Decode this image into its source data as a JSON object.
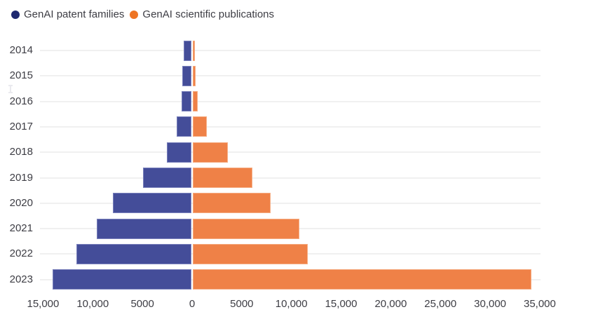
{
  "legend": {
    "items": [
      {
        "label": "GenAI patent families",
        "dot_color": "#1f2970"
      },
      {
        "label": "GenAI scientific publications",
        "dot_color": "#ee7424"
      }
    ]
  },
  "chart_data": {
    "type": "bar",
    "variant": "diverging-horizontal-pyramid",
    "title": "",
    "xlabel": "",
    "ylabel": "",
    "categories": [
      "2014",
      "2015",
      "2016",
      "2017",
      "2018",
      "2019",
      "2020",
      "2021",
      "2022",
      "2023"
    ],
    "series": [
      {
        "name": "GenAI patent families",
        "direction": "left",
        "color": "#444d99",
        "values": [
          750,
          900,
          1000,
          1450,
          2500,
          4900,
          7900,
          9500,
          11600,
          14000
        ]
      },
      {
        "name": "GenAI scientific publications",
        "direction": "right",
        "color": "#ef8147",
        "values": [
          180,
          250,
          470,
          1400,
          3550,
          6000,
          7850,
          10700,
          11550,
          34100
        ]
      }
    ],
    "x_axis": {
      "left_limit": -15000,
      "right_limit": 35000,
      "ticks": [
        {
          "value": -15000,
          "label": "15,000"
        },
        {
          "value": -10000,
          "label": "10,000"
        },
        {
          "value": -5000,
          "label": "5000"
        },
        {
          "value": 0,
          "label": "0"
        },
        {
          "value": 5000,
          "label": "5000"
        },
        {
          "value": 10000,
          "label": "10,000"
        },
        {
          "value": 15000,
          "label": "15,000"
        },
        {
          "value": 20000,
          "label": "20,000"
        },
        {
          "value": 25000,
          "label": "25,000"
        },
        {
          "value": 30000,
          "label": "30,000"
        },
        {
          "value": 35000,
          "label": "35,000"
        }
      ]
    },
    "grid": {
      "horizontal": true,
      "vertical": false
    }
  }
}
